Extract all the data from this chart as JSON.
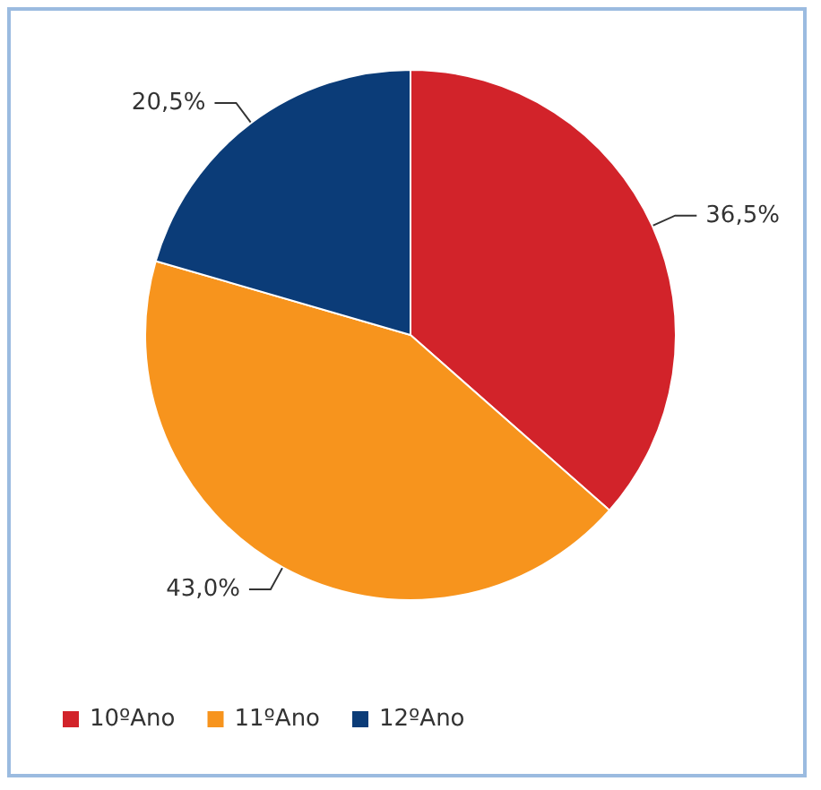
{
  "chart_data": {
    "type": "pie",
    "categories": [
      "10ºAno",
      "11ºAno",
      "12ºAno"
    ],
    "values": [
      36.5,
      43.0,
      20.5
    ],
    "colors": [
      "#d2232a",
      "#f7941d",
      "#0b3c78"
    ],
    "value_labels": [
      "36,5%",
      "43,0%",
      "20,5%"
    ],
    "legend": "bottom left"
  }
}
